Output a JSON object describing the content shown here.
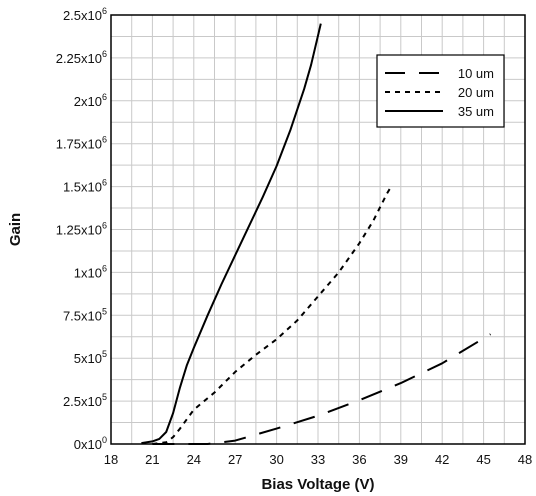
{
  "chart_data": {
    "type": "line",
    "title": "",
    "xlabel": "Bias Voltage (V)",
    "ylabel": "Gain",
    "xlim": [
      18,
      48
    ],
    "ylim": [
      0,
      2500000
    ],
    "x_ticks": [
      18,
      21,
      24,
      27,
      30,
      33,
      36,
      39,
      42,
      45,
      48
    ],
    "x_tick_labels": [
      "18",
      "21",
      "24",
      "27",
      "30",
      "33",
      "36",
      "39",
      "42",
      "45",
      "48"
    ],
    "y_ticks": [
      0,
      250000,
      500000,
      750000,
      1000000,
      1250000,
      1500000,
      1750000,
      2000000,
      2250000,
      2500000
    ],
    "y_tick_labels": [
      {
        "mantissa": "0x10",
        "exp": "0"
      },
      {
        "mantissa": "2.5x10",
        "exp": "5"
      },
      {
        "mantissa": "5x10",
        "exp": "5"
      },
      {
        "mantissa": "7.5x10",
        "exp": "5"
      },
      {
        "mantissa": "1x10",
        "exp": "6"
      },
      {
        "mantissa": "1.25x10",
        "exp": "6"
      },
      {
        "mantissa": "1.5x10",
        "exp": "6"
      },
      {
        "mantissa": "1.75x10",
        "exp": "6"
      },
      {
        "mantissa": "2x10",
        "exp": "6"
      },
      {
        "mantissa": "2.25x10",
        "exp": "6"
      },
      {
        "mantissa": "2.5x10",
        "exp": "6"
      }
    ],
    "grid": true,
    "legend_position": "top-right",
    "series": [
      {
        "name": "10 um",
        "dash": "long-dash",
        "points": [
          [
            21.0,
            0
          ],
          [
            24.0,
            0
          ],
          [
            25.0,
            0
          ],
          [
            27.0,
            20000
          ],
          [
            30.0,
            90000
          ],
          [
            33.0,
            165000
          ],
          [
            36.0,
            255000
          ],
          [
            39.0,
            355000
          ],
          [
            42.0,
            470000
          ],
          [
            45.5,
            640000
          ]
        ]
      },
      {
        "name": "20 um",
        "dash": "short-dash",
        "points": [
          [
            21.0,
            0
          ],
          [
            22.0,
            10000
          ],
          [
            22.5,
            40000
          ],
          [
            23.0,
            90000
          ],
          [
            24.0,
            200000
          ],
          [
            25.5,
            300000
          ],
          [
            27.0,
            420000
          ],
          [
            28.5,
            520000
          ],
          [
            30.0,
            610000
          ],
          [
            31.5,
            720000
          ],
          [
            33.0,
            860000
          ],
          [
            34.5,
            1000000
          ],
          [
            36.0,
            1170000
          ],
          [
            37.0,
            1300000
          ],
          [
            38.0,
            1460000
          ],
          [
            38.3,
            1500000
          ]
        ]
      },
      {
        "name": "35 um",
        "dash": "solid",
        "points": [
          [
            20.2,
            5000
          ],
          [
            21.0,
            15000
          ],
          [
            21.5,
            30000
          ],
          [
            22.0,
            70000
          ],
          [
            22.5,
            180000
          ],
          [
            23.0,
            330000
          ],
          [
            23.5,
            460000
          ],
          [
            24.0,
            560000
          ],
          [
            25.0,
            750000
          ],
          [
            26.0,
            930000
          ],
          [
            27.0,
            1100000
          ],
          [
            28.0,
            1270000
          ],
          [
            29.0,
            1440000
          ],
          [
            30.0,
            1620000
          ],
          [
            31.0,
            1830000
          ],
          [
            32.0,
            2070000
          ],
          [
            32.5,
            2210000
          ],
          [
            33.0,
            2380000
          ],
          [
            33.2,
            2450000
          ]
        ]
      }
    ]
  }
}
